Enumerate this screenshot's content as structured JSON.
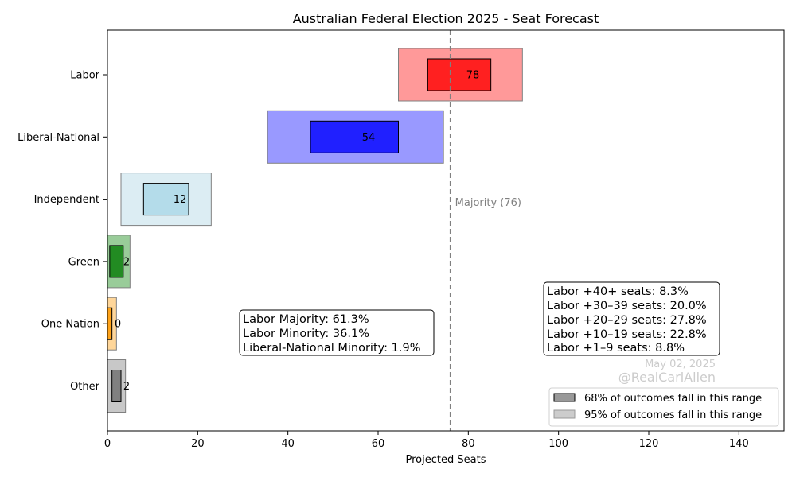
{
  "chart_data": {
    "type": "bar",
    "orientation": "horizontal",
    "title": "Australian Federal Election 2025 - Seat Forecast",
    "xlabel": "Projected Seats",
    "ylabel": "",
    "xlim": [
      0,
      150
    ],
    "xticks": [
      "0",
      "20",
      "40",
      "60",
      "80",
      "100",
      "120",
      "140"
    ],
    "categories": [
      "Labor",
      "Liberal-National",
      "Independent",
      "Green",
      "One Nation",
      "Other"
    ],
    "series": [
      {
        "name": "95% of outcomes fall in this range",
        "ranges": [
          [
            64.5,
            92
          ],
          [
            35.5,
            74.5
          ],
          [
            3,
            23
          ],
          [
            0,
            5
          ],
          [
            0,
            2
          ],
          [
            0,
            4
          ]
        ]
      },
      {
        "name": "68% of outcomes fall in this range",
        "ranges": [
          [
            71,
            85
          ],
          [
            45,
            64.5
          ],
          [
            8,
            18
          ],
          [
            0.5,
            3.5
          ],
          [
            0,
            1
          ],
          [
            1,
            3
          ]
        ]
      }
    ],
    "median_labels": [
      "78",
      "54",
      "12",
      "2",
      "0",
      "2"
    ],
    "colors": {
      "inner": [
        "#ff2020",
        "#2020ff",
        "#b4dcea",
        "#228b22",
        "#ffa31a",
        "#808080"
      ],
      "outer": [
        "#ff9999",
        "#9999ff",
        "#dcedf3",
        "#99cc99",
        "#ffd699",
        "#c8c8c8"
      ]
    },
    "majority_line": {
      "value": 76,
      "label": "Majority (76)",
      "color": "#808080"
    },
    "annotations": {
      "outcomes": [
        "Labor Majority: 61.3%",
        "Labor Minority: 36.1%",
        "Liberal-National Minority: 1.9%"
      ],
      "margins": [
        "Labor +40+ seats: 8.3%",
        "Labor +30–39 seats: 20.0%",
        "Labor +20–29 seats: 27.8%",
        "Labor +10–19 seats: 22.8%",
        "Labor +1–9 seats: 8.8%"
      ],
      "date": "May 02, 2025",
      "credit": "@RealCarlAllen"
    },
    "legend": {
      "position": "lower-right",
      "entries": [
        "68% of outcomes fall in this range",
        "95% of outcomes fall in this range"
      ]
    },
    "grid": false
  }
}
